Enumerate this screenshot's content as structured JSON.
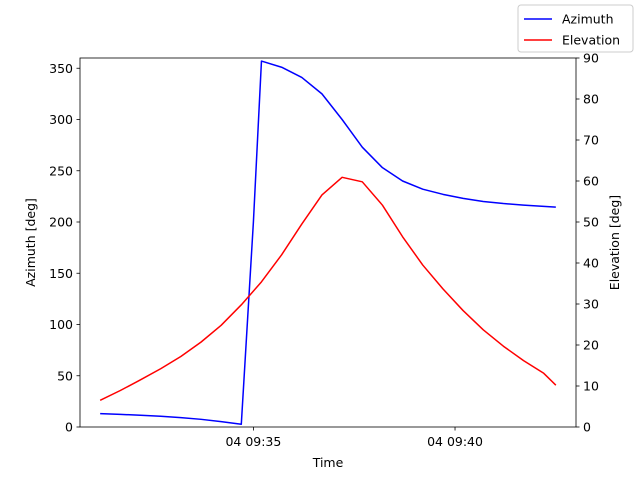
{
  "chart_data": {
    "type": "line",
    "title": "",
    "xlabel": "Time",
    "x_tick_labels": [
      "04 09:35",
      "04 09:40"
    ],
    "x_ticks_min": [
      35,
      40
    ],
    "xlim_min": [
      30.7,
      43.0
    ],
    "x_min": [
      31.2,
      31.7,
      32.2,
      32.7,
      33.2,
      33.7,
      34.2,
      34.7,
      35.2,
      35.7,
      36.2,
      36.7,
      37.2,
      37.7,
      38.2,
      38.7,
      39.2,
      39.7,
      40.2,
      40.7,
      41.2,
      41.7,
      42.2,
      42.5
    ],
    "left_axis": {
      "label": "Azimuth [deg]",
      "ylim": [
        0,
        360
      ],
      "ticks": [
        0,
        50,
        100,
        150,
        200,
        250,
        300,
        350
      ]
    },
    "right_axis": {
      "label": "Elevation [deg]",
      "ylim": [
        0,
        90
      ],
      "ticks": [
        0,
        10,
        20,
        30,
        40,
        50,
        60,
        70,
        80,
        90
      ]
    },
    "series": [
      {
        "name": "Azimuth",
        "axis": "left",
        "color": "#0000ff",
        "x_min": [
          31.2,
          31.7,
          32.2,
          32.7,
          33.2,
          33.7,
          34.2,
          34.7,
          35.0,
          35.2,
          35.7,
          36.2,
          36.7,
          37.2,
          37.7,
          38.2,
          38.7,
          39.2,
          39.7,
          40.2,
          40.7,
          41.2,
          41.7,
          42.2,
          42.5
        ],
        "values": [
          13,
          12.3,
          11.5,
          10.5,
          9.2,
          7.5,
          5.3,
          2.7,
          200,
          357,
          351,
          341,
          325,
          300,
          273,
          253,
          240,
          232,
          227,
          223,
          220,
          218,
          216.5,
          215.2,
          214.5
        ]
      },
      {
        "name": "Elevation",
        "axis": "right",
        "color": "#ff0000",
        "values": [
          6.5,
          8.9,
          11.5,
          14.2,
          17.2,
          20.7,
          24.8,
          29.8,
          35.4,
          42.0,
          49.5,
          56.6,
          60.9,
          59.8,
          54.1,
          46.4,
          39.5,
          33.7,
          28.4,
          23.7,
          19.7,
          16.2,
          13.1,
          10.2
        ]
      }
    ],
    "legend": "top-right",
    "grid": false
  }
}
